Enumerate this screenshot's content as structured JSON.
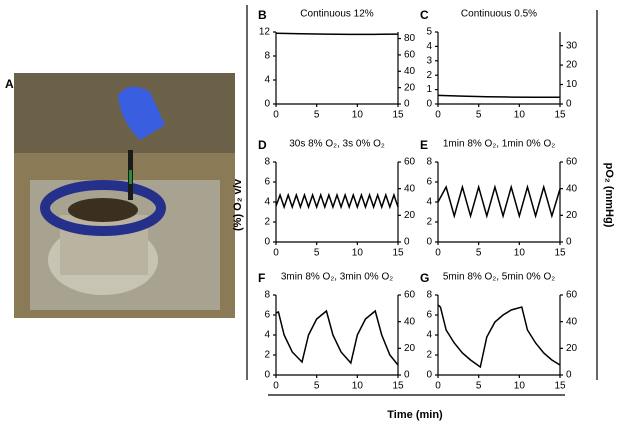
{
  "panel_a": {
    "label": "A"
  },
  "y_label": "(%) O₂ v/v",
  "y2_label": "pO₂ (mmHg)",
  "x_label": "Time (min)",
  "chart_data": [
    {
      "type": "line",
      "label": "B",
      "title": "Continuous 12%",
      "color": "#000000",
      "x": [
        0,
        3,
        6,
        9,
        12,
        15
      ],
      "values": [
        11.8,
        11.7,
        11.65,
        11.6,
        11.6,
        11.65
      ],
      "xlim": [
        0,
        15
      ],
      "xticks": [
        0,
        5,
        10,
        15
      ],
      "ylim": [
        0,
        12
      ],
      "yticks": [
        0,
        4,
        8,
        12
      ],
      "y2lim": [
        0,
        88
      ],
      "y2ticks": [
        0,
        20,
        40,
        60,
        80
      ]
    },
    {
      "type": "line",
      "label": "C",
      "title": "Continuous 0.5%",
      "color": "#000000",
      "x": [
        0,
        3,
        6,
        9,
        12,
        15
      ],
      "values": [
        0.6,
        0.55,
        0.5,
        0.48,
        0.47,
        0.47
      ],
      "xlim": [
        0,
        15
      ],
      "xticks": [
        0,
        5,
        10,
        15
      ],
      "ylim": [
        0,
        5
      ],
      "yticks": [
        0,
        1,
        2,
        3,
        4,
        5
      ],
      "y2lim": [
        0,
        37
      ],
      "y2ticks": [
        0,
        10,
        20,
        30
      ]
    },
    {
      "type": "line",
      "label": "D",
      "title": "30s 8% O₂, 3s 0% O₂",
      "color": "#000000",
      "x": [
        0,
        0.5,
        1,
        1.5,
        2,
        2.5,
        3,
        3.5,
        4,
        4.5,
        5,
        5.5,
        6,
        6.5,
        7,
        7.5,
        8,
        8.5,
        9,
        9.5,
        10,
        10.5,
        11,
        11.5,
        12,
        12.5,
        13,
        13.5,
        14,
        14.5,
        15
      ],
      "values": [
        3.6,
        4.7,
        3.5,
        4.7,
        3.5,
        4.7,
        3.5,
        4.7,
        3.5,
        4.7,
        3.5,
        4.7,
        3.5,
        4.7,
        3.5,
        4.7,
        3.5,
        4.7,
        3.5,
        4.7,
        3.5,
        4.7,
        3.5,
        4.7,
        3.5,
        4.7,
        3.5,
        4.7,
        3.5,
        4.7,
        3.5
      ],
      "xlim": [
        0,
        15
      ],
      "xticks": [
        0,
        5,
        10,
        15
      ],
      "ylim": [
        0,
        8
      ],
      "yticks": [
        0,
        2,
        4,
        6,
        8
      ],
      "y2lim": [
        0,
        60
      ],
      "y2ticks": [
        0,
        20,
        40,
        60
      ]
    },
    {
      "type": "line",
      "label": "E",
      "title": "1min 8% O₂, 1min 0% O₂",
      "color": "#000000",
      "x": [
        0,
        1,
        2,
        3,
        4,
        5,
        6,
        7,
        8,
        9,
        10,
        11,
        12,
        13,
        14,
        15
      ],
      "values": [
        4.0,
        5.5,
        2.6,
        5.5,
        2.6,
        5.5,
        2.6,
        5.5,
        2.6,
        5.5,
        2.6,
        5.5,
        2.6,
        5.5,
        2.6,
        5.3
      ],
      "xlim": [
        0,
        15
      ],
      "xticks": [
        0,
        5,
        10,
        15
      ],
      "ylim": [
        0,
        8
      ],
      "yticks": [
        0,
        2,
        4,
        6,
        8
      ],
      "y2lim": [
        0,
        60
      ],
      "y2ticks": [
        0,
        20,
        40,
        60
      ]
    },
    {
      "type": "line",
      "label": "F",
      "title": "3min 8% O₂, 3min 0% O₂",
      "color": "#000000",
      "x": [
        0,
        0.3,
        1,
        2,
        3.2,
        4,
        5,
        6.2,
        7,
        8,
        9.2,
        10,
        11,
        12.2,
        13,
        14,
        15
      ],
      "values": [
        6.2,
        6.3,
        4.0,
        2.3,
        1.3,
        4.0,
        5.6,
        6.4,
        4.0,
        2.3,
        1.2,
        4.0,
        5.6,
        6.4,
        4.0,
        2.0,
        1.0
      ],
      "xlim": [
        0,
        15
      ],
      "xticks": [
        0,
        5,
        10,
        15
      ],
      "ylim": [
        0,
        8
      ],
      "yticks": [
        0,
        2,
        4,
        6,
        8
      ],
      "y2lim": [
        0,
        60
      ],
      "y2ticks": [
        0,
        20,
        40,
        60
      ]
    },
    {
      "type": "line",
      "label": "G",
      "title": "5min 8% O₂, 5min 0% O₂",
      "color": "#000000",
      "x": [
        0,
        0.3,
        1,
        2,
        3,
        4,
        5.2,
        6,
        7,
        8,
        9,
        10.3,
        11,
        12,
        13,
        14,
        15
      ],
      "values": [
        7.0,
        6.8,
        4.5,
        3.2,
        2.2,
        1.5,
        0.8,
        3.8,
        5.3,
        6.0,
        6.5,
        6.8,
        4.5,
        3.2,
        2.2,
        1.5,
        1.0
      ],
      "xlim": [
        0,
        15
      ],
      "xticks": [
        0,
        5,
        10,
        15
      ],
      "ylim": [
        0,
        8
      ],
      "yticks": [
        0,
        2,
        4,
        6,
        8
      ],
      "y2lim": [
        0,
        60
      ],
      "y2ticks": [
        0,
        20,
        40,
        60
      ]
    }
  ]
}
